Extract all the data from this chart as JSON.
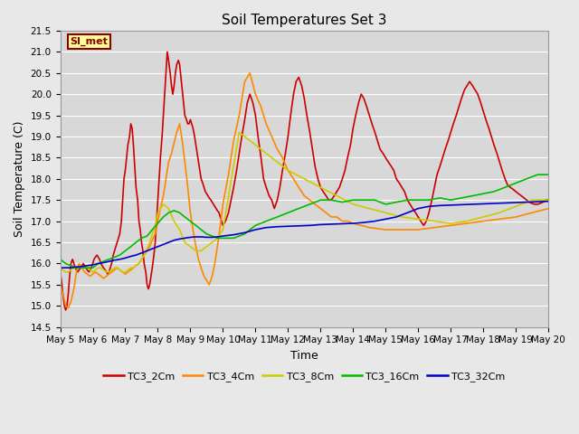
{
  "title": "Soil Temperatures Set 3",
  "xlabel": "Time",
  "ylabel": "Soil Temperature (C)",
  "ylim": [
    14.5,
    21.5
  ],
  "fig_facecolor": "#e8e8e8",
  "ax_facecolor": "#d8d8d8",
  "grid_color": "#ffffff",
  "annotation_text": "SI_met",
  "annotation_bg": "#ffff99",
  "annotation_border": "#8b0000",
  "legend_labels": [
    "TC3_2Cm",
    "TC3_4Cm",
    "TC3_8Cm",
    "TC3_16Cm",
    "TC3_32Cm"
  ],
  "line_colors": [
    "#cc0000",
    "#ff8800",
    "#cccc00",
    "#00bb00",
    "#0000cc"
  ],
  "TC3_2Cm_x": [
    0.0,
    0.04,
    0.08,
    0.13,
    0.17,
    0.21,
    0.25,
    0.29,
    0.33,
    0.38,
    0.42,
    0.46,
    0.5,
    0.54,
    0.58,
    0.63,
    0.67,
    0.71,
    0.75,
    0.79,
    0.83,
    0.88,
    0.92,
    0.96,
    1.0,
    1.04,
    1.08,
    1.13,
    1.17,
    1.21,
    1.25,
    1.29,
    1.33,
    1.38,
    1.42,
    1.46,
    1.5,
    1.54,
    1.58,
    1.63,
    1.67,
    1.71,
    1.75,
    1.79,
    1.83,
    1.88,
    1.92,
    1.96,
    2.0,
    2.04,
    2.08,
    2.13,
    2.17,
    2.21,
    2.25,
    2.29,
    2.33,
    2.38,
    2.42,
    2.46,
    2.5,
    2.54,
    2.58,
    2.63,
    2.67,
    2.71,
    2.75,
    2.79,
    2.83,
    2.88,
    2.92,
    2.96,
    3.0,
    3.04,
    3.08,
    3.13,
    3.17,
    3.21,
    3.25,
    3.29,
    3.33,
    3.38,
    3.42,
    3.46,
    3.5,
    3.54,
    3.58,
    3.63,
    3.67,
    3.71,
    3.75,
    3.79,
    3.83,
    3.88,
    3.92,
    3.96,
    4.0,
    4.04,
    4.08,
    4.13,
    4.17,
    4.21,
    4.25,
    4.29,
    4.33,
    4.38,
    4.42,
    4.46,
    4.5,
    4.54,
    4.58,
    4.63,
    4.67,
    4.71,
    4.75,
    4.79,
    4.83,
    4.88,
    4.92,
    4.96,
    5.0,
    5.08,
    5.17,
    5.25,
    5.33,
    5.42,
    5.5,
    5.58,
    5.67,
    5.75,
    5.83,
    5.92,
    6.0,
    6.08,
    6.17,
    6.25,
    6.33,
    6.42,
    6.5,
    6.58,
    6.67,
    6.75,
    6.83,
    6.92,
    7.0,
    7.08,
    7.17,
    7.25,
    7.33,
    7.42,
    7.5,
    7.58,
    7.67,
    7.75,
    7.83,
    7.92,
    8.0,
    8.08,
    8.17,
    8.25,
    8.33,
    8.42,
    8.5,
    8.58,
    8.67,
    8.75,
    8.83,
    8.92,
    9.0,
    9.08,
    9.17,
    9.25,
    9.33,
    9.42,
    9.5,
    9.58,
    9.67,
    9.75,
    9.83,
    9.92,
    10.0,
    10.08,
    10.17,
    10.25,
    10.33,
    10.42,
    10.5,
    10.58,
    10.67,
    10.75,
    10.83,
    10.92,
    11.0,
    11.08,
    11.17,
    11.25,
    11.33,
    11.42,
    11.5,
    11.58,
    11.67,
    11.75,
    11.83,
    11.92,
    12.0,
    12.08,
    12.17,
    12.25,
    12.33,
    12.42,
    12.5,
    12.58,
    12.67,
    12.75,
    12.83,
    12.92,
    13.0,
    13.08,
    13.17,
    13.25,
    13.33,
    13.42,
    13.5,
    13.58,
    13.67,
    13.75,
    13.83,
    13.92,
    14.0,
    14.08,
    14.17,
    14.25,
    14.33,
    14.42,
    14.5,
    14.58,
    14.67,
    14.75,
    14.83,
    14.92,
    15.0
  ],
  "TC3_2Cm_y": [
    15.8,
    15.6,
    15.3,
    15.0,
    14.9,
    15.0,
    15.3,
    15.7,
    16.0,
    16.1,
    16.0,
    15.9,
    15.85,
    15.8,
    15.85,
    15.9,
    15.95,
    16.0,
    15.95,
    15.9,
    15.85,
    15.8,
    15.85,
    15.9,
    16.0,
    16.1,
    16.15,
    16.2,
    16.15,
    16.1,
    16.0,
    15.95,
    15.9,
    15.85,
    15.8,
    15.75,
    15.8,
    15.9,
    16.0,
    16.2,
    16.3,
    16.4,
    16.5,
    16.6,
    16.7,
    17.0,
    17.5,
    18.0,
    18.2,
    18.5,
    18.8,
    19.0,
    19.3,
    19.2,
    18.8,
    18.3,
    17.8,
    17.5,
    17.0,
    16.8,
    16.5,
    16.3,
    16.0,
    15.8,
    15.5,
    15.4,
    15.5,
    15.7,
    15.9,
    16.2,
    16.5,
    17.0,
    17.5,
    18.0,
    18.5,
    19.0,
    19.5,
    20.0,
    20.5,
    21.0,
    20.8,
    20.5,
    20.2,
    20.0,
    20.2,
    20.5,
    20.7,
    20.8,
    20.7,
    20.4,
    20.1,
    19.8,
    19.5,
    19.4,
    19.3,
    19.3,
    19.4,
    19.3,
    19.2,
    19.0,
    18.8,
    18.6,
    18.4,
    18.2,
    18.0,
    17.9,
    17.8,
    17.7,
    17.65,
    17.6,
    17.55,
    17.5,
    17.45,
    17.4,
    17.35,
    17.3,
    17.25,
    17.2,
    17.1,
    17.0,
    16.9,
    17.0,
    17.2,
    17.5,
    17.8,
    18.2,
    18.6,
    19.0,
    19.4,
    19.8,
    20.0,
    19.8,
    19.5,
    19.0,
    18.5,
    18.0,
    17.8,
    17.6,
    17.5,
    17.3,
    17.5,
    17.8,
    18.2,
    18.6,
    19.0,
    19.5,
    20.0,
    20.3,
    20.4,
    20.2,
    19.9,
    19.5,
    19.1,
    18.7,
    18.3,
    18.0,
    17.8,
    17.7,
    17.6,
    17.5,
    17.5,
    17.6,
    17.7,
    17.8,
    18.0,
    18.2,
    18.5,
    18.8,
    19.2,
    19.5,
    19.8,
    20.0,
    19.9,
    19.7,
    19.5,
    19.3,
    19.1,
    18.9,
    18.7,
    18.6,
    18.5,
    18.4,
    18.3,
    18.2,
    18.0,
    17.9,
    17.8,
    17.7,
    17.5,
    17.4,
    17.3,
    17.2,
    17.1,
    17.0,
    16.9,
    17.0,
    17.2,
    17.5,
    17.8,
    18.1,
    18.3,
    18.5,
    18.7,
    18.9,
    19.1,
    19.3,
    19.5,
    19.7,
    19.9,
    20.1,
    20.2,
    20.3,
    20.2,
    20.1,
    20.0,
    19.8,
    19.6,
    19.4,
    19.2,
    19.0,
    18.8,
    18.6,
    18.4,
    18.2,
    18.0,
    17.85,
    17.8,
    17.75,
    17.7,
    17.65,
    17.6,
    17.55,
    17.5,
    17.45,
    17.42,
    17.4,
    17.4,
    17.42,
    17.45,
    17.5,
    17.5
  ],
  "TC3_4Cm_x": [
    0.0,
    0.08,
    0.17,
    0.25,
    0.33,
    0.42,
    0.5,
    0.58,
    0.67,
    0.75,
    0.83,
    0.92,
    1.0,
    1.08,
    1.17,
    1.25,
    1.33,
    1.42,
    1.5,
    1.58,
    1.67,
    1.75,
    1.83,
    1.92,
    2.0,
    2.08,
    2.17,
    2.25,
    2.33,
    2.42,
    2.5,
    2.58,
    2.67,
    2.75,
    2.83,
    2.92,
    3.0,
    3.08,
    3.17,
    3.25,
    3.33,
    3.42,
    3.5,
    3.58,
    3.67,
    3.75,
    3.83,
    3.92,
    4.0,
    4.08,
    4.17,
    4.25,
    4.33,
    4.42,
    4.5,
    4.58,
    4.67,
    4.75,
    4.83,
    4.92,
    5.0,
    5.17,
    5.33,
    5.5,
    5.67,
    5.83,
    6.0,
    6.17,
    6.33,
    6.5,
    6.67,
    6.83,
    7.0,
    7.17,
    7.33,
    7.5,
    7.67,
    7.83,
    8.0,
    8.17,
    8.33,
    8.5,
    8.67,
    8.83,
    9.0,
    9.5,
    10.0,
    10.5,
    11.0,
    11.5,
    12.0,
    12.5,
    13.0,
    13.5,
    14.0,
    14.5,
    15.0
  ],
  "TC3_4Cm_y": [
    15.5,
    15.3,
    15.0,
    14.95,
    15.1,
    15.4,
    15.8,
    16.0,
    15.9,
    15.8,
    15.75,
    15.7,
    15.75,
    15.8,
    15.75,
    15.7,
    15.65,
    15.7,
    15.75,
    15.8,
    15.85,
    15.9,
    15.85,
    15.8,
    15.75,
    15.8,
    15.85,
    15.9,
    15.95,
    16.0,
    16.1,
    16.2,
    16.3,
    16.4,
    16.55,
    16.7,
    17.0,
    17.3,
    17.6,
    18.0,
    18.4,
    18.6,
    18.85,
    19.1,
    19.3,
    18.9,
    18.4,
    17.8,
    17.2,
    16.8,
    16.4,
    16.1,
    15.9,
    15.7,
    15.6,
    15.5,
    15.7,
    16.0,
    16.4,
    16.9,
    17.4,
    18.1,
    18.9,
    19.5,
    20.3,
    20.5,
    20.0,
    19.7,
    19.3,
    19.0,
    18.7,
    18.5,
    18.2,
    18.0,
    17.8,
    17.6,
    17.5,
    17.4,
    17.3,
    17.2,
    17.1,
    17.1,
    17.0,
    17.0,
    16.95,
    16.85,
    16.8,
    16.8,
    16.8,
    16.85,
    16.9,
    16.95,
    17.0,
    17.05,
    17.1,
    17.2,
    17.3
  ],
  "TC3_8Cm_x": [
    0.0,
    0.08,
    0.17,
    0.25,
    0.33,
    0.42,
    0.5,
    0.58,
    0.67,
    0.75,
    0.83,
    0.92,
    1.0,
    1.08,
    1.17,
    1.25,
    1.33,
    1.42,
    1.5,
    1.58,
    1.67,
    1.75,
    1.83,
    1.92,
    2.0,
    2.08,
    2.17,
    2.25,
    2.33,
    2.42,
    2.5,
    2.58,
    2.67,
    2.75,
    2.83,
    2.92,
    3.0,
    3.17,
    3.33,
    3.5,
    3.67,
    3.83,
    4.0,
    4.17,
    4.33,
    4.5,
    4.67,
    4.83,
    5.0,
    5.5,
    6.0,
    6.5,
    7.0,
    7.5,
    8.0,
    8.5,
    9.0,
    9.5,
    10.0,
    10.5,
    11.0,
    11.5,
    12.0,
    12.5,
    13.0,
    13.5,
    14.0,
    14.5,
    15.0
  ],
  "TC3_8Cm_y": [
    15.9,
    15.85,
    15.8,
    15.8,
    15.85,
    15.9,
    15.9,
    15.9,
    15.9,
    15.9,
    15.9,
    15.85,
    15.8,
    15.85,
    15.9,
    15.9,
    15.85,
    15.8,
    15.8,
    15.85,
    15.9,
    15.9,
    15.85,
    15.8,
    15.8,
    15.85,
    15.9,
    15.9,
    15.95,
    16.0,
    16.1,
    16.2,
    16.35,
    16.5,
    16.7,
    16.9,
    17.2,
    17.4,
    17.3,
    17.0,
    16.8,
    16.5,
    16.4,
    16.3,
    16.3,
    16.4,
    16.5,
    16.6,
    16.8,
    19.1,
    18.8,
    18.5,
    18.2,
    18.0,
    17.8,
    17.6,
    17.4,
    17.3,
    17.2,
    17.1,
    17.05,
    17.0,
    16.95,
    17.0,
    17.1,
    17.2,
    17.35,
    17.5,
    17.5
  ],
  "TC3_16Cm_x": [
    0.0,
    0.17,
    0.33,
    0.5,
    0.67,
    0.83,
    1.0,
    1.17,
    1.33,
    1.5,
    1.67,
    1.83,
    2.0,
    2.17,
    2.33,
    2.5,
    2.67,
    2.83,
    3.0,
    3.17,
    3.33,
    3.5,
    3.67,
    3.83,
    4.0,
    4.17,
    4.33,
    4.5,
    4.67,
    4.83,
    5.0,
    5.33,
    5.67,
    6.0,
    6.33,
    6.67,
    7.0,
    7.33,
    7.67,
    8.0,
    8.33,
    8.67,
    9.0,
    9.33,
    9.67,
    10.0,
    10.33,
    10.67,
    11.0,
    11.33,
    11.67,
    12.0,
    12.33,
    12.67,
    13.0,
    13.33,
    13.67,
    14.0,
    14.33,
    14.67,
    15.0
  ],
  "TC3_16Cm_y": [
    16.1,
    16.0,
    15.95,
    15.9,
    15.9,
    15.9,
    15.9,
    16.0,
    16.05,
    16.1,
    16.15,
    16.2,
    16.3,
    16.4,
    16.5,
    16.6,
    16.65,
    16.8,
    16.95,
    17.1,
    17.2,
    17.25,
    17.2,
    17.1,
    17.0,
    16.9,
    16.8,
    16.7,
    16.65,
    16.6,
    16.6,
    16.6,
    16.7,
    16.9,
    17.0,
    17.1,
    17.2,
    17.3,
    17.4,
    17.5,
    17.5,
    17.45,
    17.5,
    17.5,
    17.5,
    17.4,
    17.45,
    17.5,
    17.5,
    17.5,
    17.55,
    17.5,
    17.55,
    17.6,
    17.65,
    17.7,
    17.8,
    17.9,
    18.0,
    18.1,
    18.1
  ],
  "TC3_32Cm_x": [
    0.0,
    0.17,
    0.33,
    0.5,
    0.67,
    0.83,
    1.0,
    1.17,
    1.33,
    1.5,
    1.67,
    1.83,
    2.0,
    2.17,
    2.33,
    2.5,
    2.67,
    2.83,
    3.0,
    3.17,
    3.33,
    3.5,
    3.67,
    3.83,
    4.0,
    4.17,
    4.33,
    4.5,
    4.67,
    4.83,
    5.0,
    5.33,
    5.67,
    6.0,
    6.33,
    6.67,
    7.0,
    7.33,
    7.67,
    8.0,
    8.33,
    8.67,
    9.0,
    9.33,
    9.67,
    10.0,
    10.33,
    10.67,
    11.0,
    11.33,
    11.67,
    12.0,
    12.33,
    12.67,
    13.0,
    13.33,
    13.67,
    14.0,
    14.33,
    14.67,
    15.0
  ],
  "TC3_32Cm_y": [
    15.9,
    15.9,
    15.9,
    15.92,
    15.93,
    15.95,
    15.97,
    16.0,
    16.02,
    16.05,
    16.08,
    16.1,
    16.13,
    16.17,
    16.2,
    16.25,
    16.3,
    16.35,
    16.4,
    16.45,
    16.5,
    16.55,
    16.58,
    16.6,
    16.62,
    16.63,
    16.63,
    16.62,
    16.62,
    16.63,
    16.65,
    16.68,
    16.73,
    16.8,
    16.85,
    16.87,
    16.88,
    16.89,
    16.9,
    16.92,
    16.93,
    16.94,
    16.95,
    16.97,
    17.0,
    17.05,
    17.1,
    17.2,
    17.3,
    17.35,
    17.37,
    17.38,
    17.39,
    17.4,
    17.41,
    17.42,
    17.43,
    17.44,
    17.45,
    17.46,
    17.47
  ],
  "xtick_labels": [
    "May 5",
    "May 6",
    "May 7",
    "May 8",
    "May 9",
    "May 10",
    "May 11",
    "May 12",
    "May 13",
    "May 14",
    "May 15",
    "May 16",
    "May 17",
    "May 18",
    "May 19",
    "May 20"
  ],
  "xtick_pos": [
    0,
    1,
    2,
    3,
    4,
    5,
    6,
    7,
    8,
    9,
    10,
    11,
    12,
    13,
    14,
    15
  ]
}
